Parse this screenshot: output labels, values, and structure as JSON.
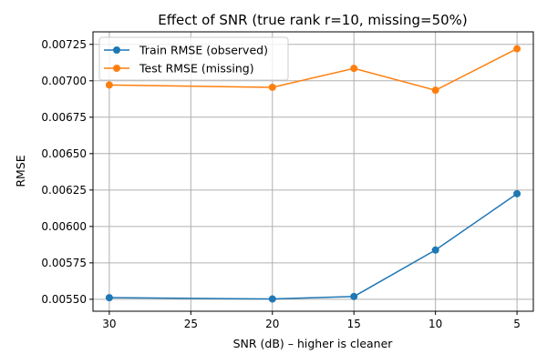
{
  "chart_data": {
    "type": "line",
    "title": "Effect of SNR (true rank r=10, missing=50%)",
    "xlabel": "SNR (dB) – higher is cleaner",
    "ylabel": "RMSE",
    "x_ticks": [
      "30",
      "25",
      "20",
      "15",
      "10",
      "5"
    ],
    "y_ticks": [
      "0.00550",
      "0.00575",
      "0.00600",
      "0.00625",
      "0.00650",
      "0.00675",
      "0.00700",
      "0.00725"
    ],
    "x": [
      30,
      20,
      15,
      10,
      5
    ],
    "xlim": [
      31,
      4
    ],
    "ylim": [
      0.005418,
      0.007336
    ],
    "grid": true,
    "legend_position": "top-left",
    "series": [
      {
        "name": "Train RMSE (observed)",
        "color": "#1f77b4",
        "values": [
          0.005511,
          0.005502,
          0.005519,
          0.005838,
          0.006225
        ]
      },
      {
        "name": "Test RMSE (missing)",
        "color": "#ff7f0e",
        "values": [
          0.006971,
          0.006955,
          0.007085,
          0.006935,
          0.00722
        ]
      }
    ]
  }
}
